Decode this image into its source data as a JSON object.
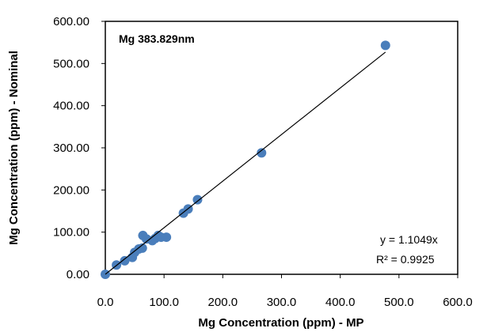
{
  "chart_data": {
    "type": "scatter",
    "title": "Mg 383.829nm",
    "xlabel": "Mg Concentration (ppm) - MP",
    "ylabel": "Mg Concentration (ppm) - Nominal",
    "xlim": [
      0,
      600
    ],
    "ylim": [
      0,
      600
    ],
    "xticks": [
      0,
      100,
      200,
      300,
      400,
      500,
      600
    ],
    "xtick_labels": [
      "0.0",
      "100.0",
      "200.0",
      "300.0",
      "400.0",
      "500.0",
      "600.0"
    ],
    "yticks": [
      0,
      100,
      200,
      300,
      400,
      500,
      600
    ],
    "ytick_labels": [
      "0.00",
      "100.00",
      "200.00",
      "300.00",
      "400.00",
      "500.00",
      "600.00"
    ],
    "grid": false,
    "marker_color": "#4a7ebb",
    "trendline_color": "#000000",
    "series": [
      {
        "x": [
          0,
          19,
          33,
          46,
          50,
          57,
          63,
          64,
          70,
          80,
          85,
          90,
          95,
          104,
          133,
          141,
          157,
          266,
          477
        ],
        "y": [
          0,
          22,
          32,
          40,
          52,
          60,
          62,
          92,
          84,
          80,
          85,
          92,
          88,
          88,
          145,
          155,
          177,
          288,
          543
        ]
      }
    ],
    "trendline": {
      "slope": 1.1049,
      "x_range": [
        0,
        477
      ]
    },
    "annotations": {
      "equation": "y = 1.1049x",
      "r_squared": "R² = 0.9925"
    }
  }
}
